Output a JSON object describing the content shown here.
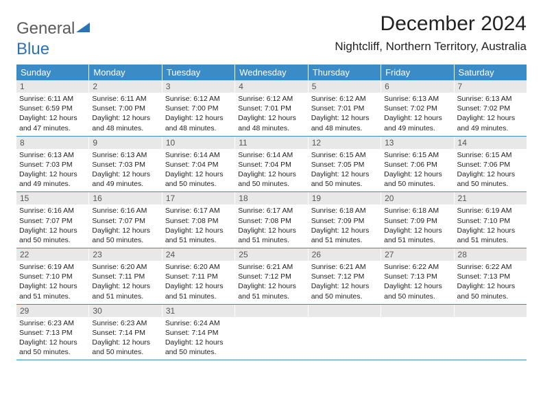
{
  "logo": {
    "text1": "General",
    "text2": "Blue"
  },
  "title": "December 2024",
  "location": "Nightcliff, Northern Territory, Australia",
  "colors": {
    "header_bg": "#3b8bc6",
    "header_text": "#ffffff",
    "daynum_bg": "#e8e8e8",
    "daynum_text": "#555555",
    "body_text": "#222222",
    "week_divider": "#3b8bc6",
    "logo_gray": "#5a5a5a",
    "logo_blue": "#2c72b8"
  },
  "typography": {
    "title_fontsize": 30,
    "location_fontsize": 17,
    "dayheader_fontsize": 13,
    "daynum_fontsize": 12,
    "body_fontsize": 10.5
  },
  "day_headers": [
    "Sunday",
    "Monday",
    "Tuesday",
    "Wednesday",
    "Thursday",
    "Friday",
    "Saturday"
  ],
  "weeks": [
    [
      {
        "n": "1",
        "sr": "Sunrise: 6:11 AM",
        "ss": "Sunset: 6:59 PM",
        "d1": "Daylight: 12 hours",
        "d2": "and 47 minutes."
      },
      {
        "n": "2",
        "sr": "Sunrise: 6:11 AM",
        "ss": "Sunset: 7:00 PM",
        "d1": "Daylight: 12 hours",
        "d2": "and 48 minutes."
      },
      {
        "n": "3",
        "sr": "Sunrise: 6:12 AM",
        "ss": "Sunset: 7:00 PM",
        "d1": "Daylight: 12 hours",
        "d2": "and 48 minutes."
      },
      {
        "n": "4",
        "sr": "Sunrise: 6:12 AM",
        "ss": "Sunset: 7:01 PM",
        "d1": "Daylight: 12 hours",
        "d2": "and 48 minutes."
      },
      {
        "n": "5",
        "sr": "Sunrise: 6:12 AM",
        "ss": "Sunset: 7:01 PM",
        "d1": "Daylight: 12 hours",
        "d2": "and 48 minutes."
      },
      {
        "n": "6",
        "sr": "Sunrise: 6:13 AM",
        "ss": "Sunset: 7:02 PM",
        "d1": "Daylight: 12 hours",
        "d2": "and 49 minutes."
      },
      {
        "n": "7",
        "sr": "Sunrise: 6:13 AM",
        "ss": "Sunset: 7:02 PM",
        "d1": "Daylight: 12 hours",
        "d2": "and 49 minutes."
      }
    ],
    [
      {
        "n": "8",
        "sr": "Sunrise: 6:13 AM",
        "ss": "Sunset: 7:03 PM",
        "d1": "Daylight: 12 hours",
        "d2": "and 49 minutes."
      },
      {
        "n": "9",
        "sr": "Sunrise: 6:13 AM",
        "ss": "Sunset: 7:03 PM",
        "d1": "Daylight: 12 hours",
        "d2": "and 49 minutes."
      },
      {
        "n": "10",
        "sr": "Sunrise: 6:14 AM",
        "ss": "Sunset: 7:04 PM",
        "d1": "Daylight: 12 hours",
        "d2": "and 50 minutes."
      },
      {
        "n": "11",
        "sr": "Sunrise: 6:14 AM",
        "ss": "Sunset: 7:04 PM",
        "d1": "Daylight: 12 hours",
        "d2": "and 50 minutes."
      },
      {
        "n": "12",
        "sr": "Sunrise: 6:15 AM",
        "ss": "Sunset: 7:05 PM",
        "d1": "Daylight: 12 hours",
        "d2": "and 50 minutes."
      },
      {
        "n": "13",
        "sr": "Sunrise: 6:15 AM",
        "ss": "Sunset: 7:06 PM",
        "d1": "Daylight: 12 hours",
        "d2": "and 50 minutes."
      },
      {
        "n": "14",
        "sr": "Sunrise: 6:15 AM",
        "ss": "Sunset: 7:06 PM",
        "d1": "Daylight: 12 hours",
        "d2": "and 50 minutes."
      }
    ],
    [
      {
        "n": "15",
        "sr": "Sunrise: 6:16 AM",
        "ss": "Sunset: 7:07 PM",
        "d1": "Daylight: 12 hours",
        "d2": "and 50 minutes."
      },
      {
        "n": "16",
        "sr": "Sunrise: 6:16 AM",
        "ss": "Sunset: 7:07 PM",
        "d1": "Daylight: 12 hours",
        "d2": "and 50 minutes."
      },
      {
        "n": "17",
        "sr": "Sunrise: 6:17 AM",
        "ss": "Sunset: 7:08 PM",
        "d1": "Daylight: 12 hours",
        "d2": "and 51 minutes."
      },
      {
        "n": "18",
        "sr": "Sunrise: 6:17 AM",
        "ss": "Sunset: 7:08 PM",
        "d1": "Daylight: 12 hours",
        "d2": "and 51 minutes."
      },
      {
        "n": "19",
        "sr": "Sunrise: 6:18 AM",
        "ss": "Sunset: 7:09 PM",
        "d1": "Daylight: 12 hours",
        "d2": "and 51 minutes."
      },
      {
        "n": "20",
        "sr": "Sunrise: 6:18 AM",
        "ss": "Sunset: 7:09 PM",
        "d1": "Daylight: 12 hours",
        "d2": "and 51 minutes."
      },
      {
        "n": "21",
        "sr": "Sunrise: 6:19 AM",
        "ss": "Sunset: 7:10 PM",
        "d1": "Daylight: 12 hours",
        "d2": "and 51 minutes."
      }
    ],
    [
      {
        "n": "22",
        "sr": "Sunrise: 6:19 AM",
        "ss": "Sunset: 7:10 PM",
        "d1": "Daylight: 12 hours",
        "d2": "and 51 minutes."
      },
      {
        "n": "23",
        "sr": "Sunrise: 6:20 AM",
        "ss": "Sunset: 7:11 PM",
        "d1": "Daylight: 12 hours",
        "d2": "and 51 minutes."
      },
      {
        "n": "24",
        "sr": "Sunrise: 6:20 AM",
        "ss": "Sunset: 7:11 PM",
        "d1": "Daylight: 12 hours",
        "d2": "and 51 minutes."
      },
      {
        "n": "25",
        "sr": "Sunrise: 6:21 AM",
        "ss": "Sunset: 7:12 PM",
        "d1": "Daylight: 12 hours",
        "d2": "and 51 minutes."
      },
      {
        "n": "26",
        "sr": "Sunrise: 6:21 AM",
        "ss": "Sunset: 7:12 PM",
        "d1": "Daylight: 12 hours",
        "d2": "and 50 minutes."
      },
      {
        "n": "27",
        "sr": "Sunrise: 6:22 AM",
        "ss": "Sunset: 7:13 PM",
        "d1": "Daylight: 12 hours",
        "d2": "and 50 minutes."
      },
      {
        "n": "28",
        "sr": "Sunrise: 6:22 AM",
        "ss": "Sunset: 7:13 PM",
        "d1": "Daylight: 12 hours",
        "d2": "and 50 minutes."
      }
    ],
    [
      {
        "n": "29",
        "sr": "Sunrise: 6:23 AM",
        "ss": "Sunset: 7:13 PM",
        "d1": "Daylight: 12 hours",
        "d2": "and 50 minutes."
      },
      {
        "n": "30",
        "sr": "Sunrise: 6:23 AM",
        "ss": "Sunset: 7:14 PM",
        "d1": "Daylight: 12 hours",
        "d2": "and 50 minutes."
      },
      {
        "n": "31",
        "sr": "Sunrise: 6:24 AM",
        "ss": "Sunset: 7:14 PM",
        "d1": "Daylight: 12 hours",
        "d2": "and 50 minutes."
      },
      {
        "empty": true
      },
      {
        "empty": true
      },
      {
        "empty": true
      },
      {
        "empty": true
      }
    ]
  ]
}
